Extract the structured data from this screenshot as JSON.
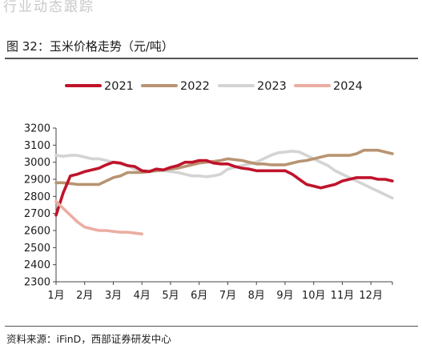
{
  "header": {
    "ghost_text": "行业动态跟踪"
  },
  "figure": {
    "title": "图 32：玉米价格走势（元/吨）"
  },
  "source": {
    "text": "资料来源：iFinD，西部证券研发中心"
  },
  "chart_data": {
    "type": "line",
    "x": [
      1,
      1.25,
      1.5,
      1.75,
      2,
      2.25,
      2.5,
      2.75,
      3,
      3.25,
      3.5,
      3.75,
      4,
      4.25,
      4.5,
      4.75,
      5,
      5.25,
      5.5,
      5.75,
      6,
      6.25,
      6.5,
      6.75,
      7,
      7.25,
      7.5,
      7.75,
      8,
      8.25,
      8.5,
      8.75,
      9,
      9.25,
      9.5,
      9.75,
      10,
      10.25,
      10.5,
      10.75,
      11,
      11.25,
      11.5,
      11.75,
      12,
      12.25,
      12.5,
      12.75
    ],
    "xlim": [
      1,
      12.75
    ],
    "ylim": [
      2300,
      3200
    ],
    "yticks": [
      2300,
      2400,
      2500,
      2600,
      2700,
      2800,
      2900,
      3000,
      3100,
      3200
    ],
    "xticks": [
      {
        "pos": 1,
        "label": "1月"
      },
      {
        "pos": 2,
        "label": "2月"
      },
      {
        "pos": 3,
        "label": "3月"
      },
      {
        "pos": 4,
        "label": "4月"
      },
      {
        "pos": 5,
        "label": "5月"
      },
      {
        "pos": 6,
        "label": "6月"
      },
      {
        "pos": 7,
        "label": "7月"
      },
      {
        "pos": 8,
        "label": "8月"
      },
      {
        "pos": 9,
        "label": "9月"
      },
      {
        "pos": 10,
        "label": "10月"
      },
      {
        "pos": 11,
        "label": "11月"
      },
      {
        "pos": 12,
        "label": "12月"
      }
    ],
    "grid": false,
    "legend_position": "top",
    "series": [
      {
        "name": "2021",
        "color": "#c0132b",
        "values": [
          2690,
          2820,
          2920,
          2930,
          2945,
          2955,
          2965,
          2985,
          3000,
          2995,
          2980,
          2975,
          2950,
          2945,
          2960,
          2955,
          2970,
          2980,
          3000,
          3000,
          3010,
          3010,
          2995,
          2990,
          2990,
          2975,
          2965,
          2960,
          2950,
          2950,
          2950,
          2950,
          2950,
          2930,
          2900,
          2870,
          2860,
          2850,
          2860,
          2870,
          2890,
          2900,
          2910,
          2910,
          2910,
          2900,
          2900,
          2890
        ]
      },
      {
        "name": "2022",
        "color": "#b89472",
        "values": [
          2880,
          2880,
          2875,
          2870,
          2870,
          2870,
          2870,
          2890,
          2910,
          2920,
          2940,
          2940,
          2940,
          2945,
          2950,
          2955,
          2960,
          2965,
          2975,
          2985,
          2995,
          3000,
          3005,
          3010,
          3020,
          3015,
          3010,
          3000,
          2990,
          2990,
          2985,
          2985,
          2985,
          2995,
          3005,
          3010,
          3020,
          3030,
          3040,
          3040,
          3040,
          3040,
          3050,
          3070,
          3070,
          3070,
          3060,
          3050
        ]
      },
      {
        "name": "2023",
        "color": "#d4d4d4",
        "values": [
          3040,
          3035,
          3040,
          3040,
          3030,
          3020,
          3020,
          3010,
          3000,
          2990,
          2980,
          2960,
          2950,
          2950,
          2950,
          2950,
          2945,
          2940,
          2930,
          2920,
          2920,
          2915,
          2920,
          2930,
          2960,
          2970,
          2980,
          2990,
          3000,
          3020,
          3040,
          3055,
          3060,
          3065,
          3060,
          3040,
          3020,
          3000,
          2980,
          2950,
          2930,
          2910,
          2890,
          2870,
          2850,
          2830,
          2810,
          2790
        ]
      },
      {
        "name": "2024",
        "color": "#ebada2",
        "values": [
          2770,
          2730,
          2690,
          2650,
          2620,
          2610,
          2600,
          2600,
          2595,
          2590,
          2590,
          2585,
          2580,
          null,
          null,
          null,
          null,
          null,
          null,
          null,
          null,
          null,
          null,
          null,
          null,
          null,
          null,
          null,
          null,
          null,
          null,
          null,
          null,
          null,
          null,
          null,
          null,
          null,
          null,
          null,
          null,
          null,
          null,
          null,
          null,
          null,
          null,
          null
        ]
      }
    ]
  }
}
